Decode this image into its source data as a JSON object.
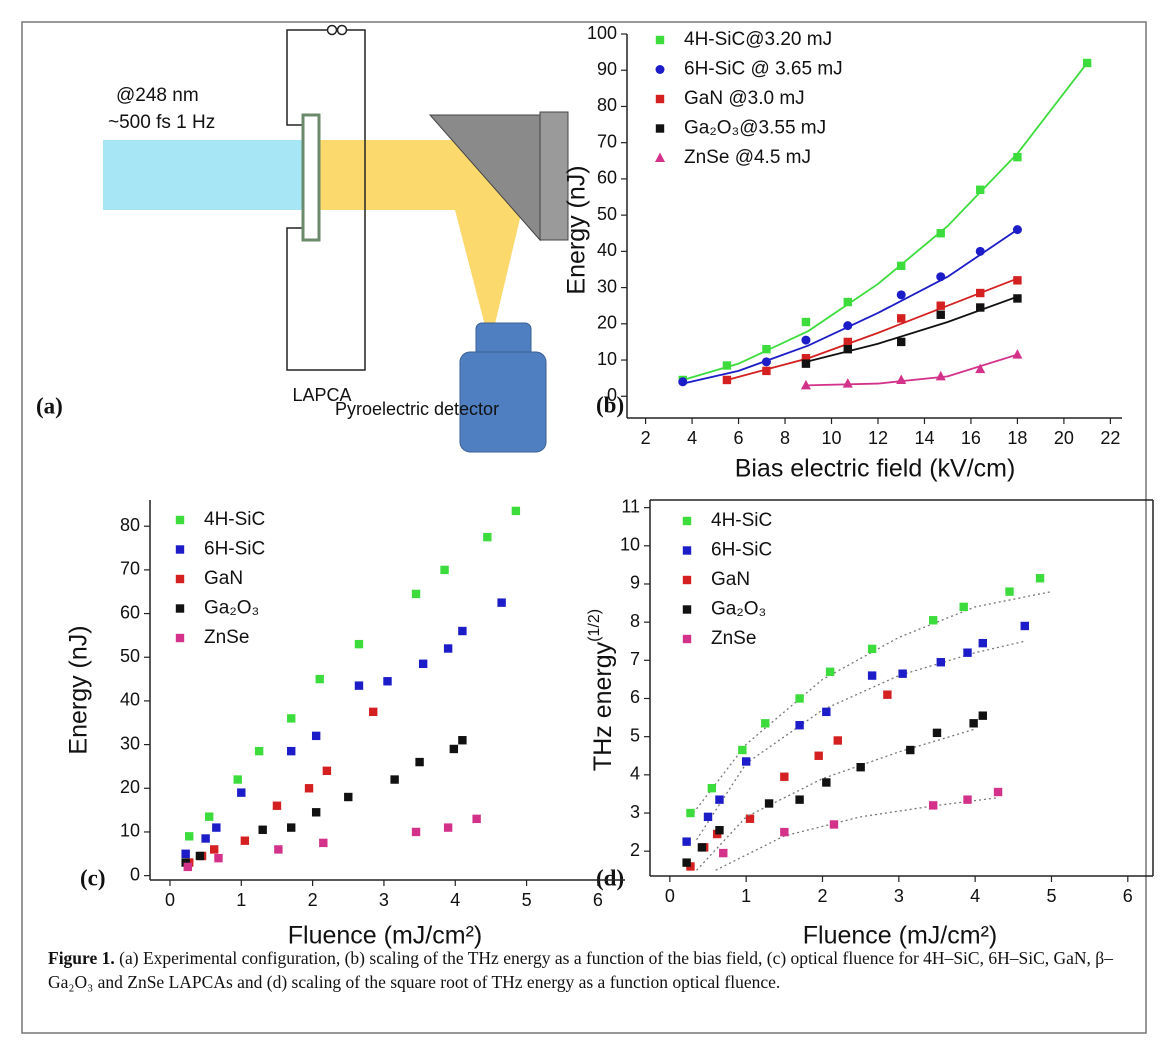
{
  "diagram": {
    "panel_label": "(a)",
    "wavelength": "@248 nm",
    "pulse": "~500 fs 1 Hz",
    "antenna": "LAPCA",
    "detector": "Pyroelectric detector"
  },
  "caption": {
    "label": "Figure 1.",
    "text": "(a) Experimental configuration, (b) scaling of the THz energy as a function of the bias field, (c) optical fluence for 4H–SiC, 6H–SiC, GaN, β–Ga₂O₃ and ZnSe LAPCAs and (d) scaling of the square root of THz energy as a function optical fluence."
  },
  "chart_data": [
    {
      "type": "scatter",
      "panel_label": "(b)",
      "x_label": "Bias electric field (kV/cm)",
      "y_label": "Energy (nJ)",
      "xlim": [
        1.2,
        22.5
      ],
      "ylim": [
        -6,
        100
      ],
      "xticks": [
        2,
        4,
        6,
        8,
        10,
        12,
        14,
        16,
        18,
        20,
        22
      ],
      "yticks": [
        0,
        10,
        20,
        30,
        40,
        50,
        60,
        70,
        80,
        90,
        100
      ],
      "legend": "top-left",
      "fit_dashed": false,
      "series": [
        {
          "name": "4H-SiC@3.20 mJ",
          "color": "#3ddc3d",
          "marker": "square",
          "x": [
            3.6,
            5.5,
            7.2,
            8.9,
            10.7,
            13,
            14.7,
            16.4,
            18,
            21
          ],
          "values": [
            4.5,
            8.5,
            13,
            20.5,
            26,
            36,
            45,
            57,
            66,
            92
          ],
          "fit": {
            "x": [
              3.6,
              6,
              9,
              12,
              15,
              18,
              21
            ],
            "values": [
              4.5,
              9,
              18,
              31,
              47,
              67,
              92
            ]
          }
        },
        {
          "name": "6H-SiC @ 3.65 mJ",
          "color": "#1c1cc8",
          "marker": "circle",
          "x": [
            3.6,
            7.2,
            8.9,
            10.7,
            13,
            14.7,
            16.4,
            18
          ],
          "values": [
            4,
            9.5,
            15.5,
            19.5,
            28,
            33,
            40,
            46
          ],
          "fit": {
            "x": [
              3.6,
              6,
              9,
              12,
              15,
              18
            ],
            "values": [
              3.5,
              7,
              14,
              23,
              33,
              46
            ]
          }
        },
        {
          "name": "GaN @3.0 mJ",
          "color": "#d42020",
          "marker": "square",
          "x": [
            5.5,
            7.2,
            8.9,
            10.7,
            13,
            14.7,
            16.4,
            18
          ],
          "values": [
            4.5,
            7,
            10.5,
            15,
            21.5,
            25,
            28.5,
            32
          ],
          "fit": {
            "x": [
              5.5,
              9,
              12,
              15,
              18
            ],
            "values": [
              4.5,
              10.5,
              17.5,
              25,
              32.5
            ]
          }
        },
        {
          "name": "Ga₂O₃@3.55 mJ",
          "color": "#111111",
          "marker": "square",
          "x": [
            8.9,
            10.7,
            13,
            14.7,
            16.4,
            18
          ],
          "values": [
            9,
            13,
            15,
            22.5,
            24.5,
            27
          ],
          "fit": {
            "x": [
              8.9,
              12,
              15,
              18
            ],
            "values": [
              9.5,
              14.5,
              20.5,
              27.5
            ]
          }
        },
        {
          "name": "ZnSe @4.5 mJ",
          "color": "#d4328a",
          "marker": "triangle",
          "x": [
            8.9,
            10.7,
            13,
            14.7,
            16.4,
            18
          ],
          "values": [
            3,
            3.5,
            4.5,
            5.5,
            7.5,
            11.5
          ],
          "fit": {
            "x": [
              8.9,
              12,
              15,
              18
            ],
            "values": [
              3,
              3.5,
              5.5,
              11.5
            ]
          }
        }
      ]
    },
    {
      "type": "scatter",
      "panel_label": "(c)",
      "x_label": "Fluence (mJ/cm²)",
      "y_label": "Energy (nJ)",
      "xlim": [
        -0.28,
        6.38
      ],
      "ylim": [
        -1,
        86
      ],
      "xticks": [
        0,
        1,
        2,
        3,
        4,
        5,
        6
      ],
      "yticks": [
        0,
        10,
        20,
        30,
        40,
        50,
        60,
        70,
        80
      ],
      "legend": "top-left",
      "series": [
        {
          "name": "4H-SiC",
          "color": "#3ddc3d",
          "marker": "square",
          "x": [
            0.27,
            0.55,
            0.95,
            1.25,
            1.7,
            2.1,
            2.65,
            3.45,
            3.85,
            4.45,
            4.85
          ],
          "values": [
            9,
            13.5,
            22,
            28.5,
            36,
            45,
            53,
            64.5,
            70,
            77.5,
            83.5
          ]
        },
        {
          "name": "6H-SiC",
          "color": "#1c1cc8",
          "marker": "square",
          "x": [
            0.22,
            0.5,
            0.65,
            1.0,
            1.7,
            2.05,
            2.65,
            3.05,
            3.55,
            3.9,
            4.1,
            4.65
          ],
          "values": [
            5,
            8.5,
            11,
            19,
            28.5,
            32,
            43.5,
            44.5,
            48.5,
            52,
            56,
            62.5
          ]
        },
        {
          "name": "GaN",
          "color": "#d42020",
          "marker": "square",
          "x": [
            0.27,
            0.45,
            0.62,
            1.05,
            1.5,
            1.95,
            2.2,
            2.85
          ],
          "values": [
            3,
            4.5,
            6,
            8,
            16,
            20,
            24,
            37.5
          ]
        },
        {
          "name": "Ga₂O₃",
          "color": "#111111",
          "marker": "square",
          "x": [
            0.22,
            0.42,
            1.3,
            1.7,
            2.05,
            2.5,
            3.15,
            3.5,
            3.98,
            4.1
          ],
          "values": [
            3,
            4.5,
            10.5,
            11,
            14.5,
            18,
            22,
            26,
            29,
            31
          ]
        },
        {
          "name": "ZnSe",
          "color": "#d4328a",
          "marker": "square",
          "x": [
            0.25,
            0.68,
            1.52,
            2.15,
            3.45,
            3.9,
            4.3
          ],
          "values": [
            2,
            4,
            6,
            7.5,
            10,
            11,
            13
          ]
        }
      ]
    },
    {
      "type": "scatter",
      "panel_label": "(d)",
      "x_label": "Fluence (mJ/cm²)",
      "y_label": "THz energy",
      "y_label_sup": "(1/2)",
      "xlim": [
        -0.26,
        6.33
      ],
      "ylim": [
        1.35,
        11.2
      ],
      "xticks": [
        0,
        1,
        2,
        3,
        4,
        5,
        6
      ],
      "yticks": [
        2,
        3,
        4,
        5,
        6,
        7,
        8,
        9,
        10,
        11
      ],
      "legend": "top-left",
      "frame": true,
      "fit_dashed": true,
      "series": [
        {
          "name": "4H-SiC",
          "color": "#3ddc3d",
          "marker": "square",
          "x": [
            0.27,
            0.55,
            0.95,
            1.25,
            1.7,
            2.1,
            2.65,
            3.45,
            3.85,
            4.45,
            4.85
          ],
          "values": [
            3,
            3.65,
            4.65,
            5.35,
            6,
            6.7,
            7.3,
            8.05,
            8.4,
            8.8,
            9.15
          ],
          "fit": {
            "x": [
              0.27,
              1,
              2,
              3,
              4,
              5
            ],
            "values": [
              2.9,
              4.8,
              6.5,
              7.6,
              8.4,
              8.8
            ]
          }
        },
        {
          "name": "6H-SiC",
          "color": "#1c1cc8",
          "marker": "square",
          "x": [
            0.22,
            0.5,
            0.65,
            1.0,
            1.7,
            2.05,
            2.65,
            3.05,
            3.55,
            3.9,
            4.1,
            4.65
          ],
          "values": [
            2.25,
            2.9,
            3.35,
            4.35,
            5.3,
            5.65,
            6.6,
            6.65,
            6.95,
            7.2,
            7.45,
            7.9
          ],
          "fit": {
            "x": [
              0.35,
              1,
              2,
              3,
              4,
              4.65
            ],
            "values": [
              2.3,
              4.3,
              5.7,
              6.6,
              7.2,
              7.5
            ]
          }
        },
        {
          "name": "GaN",
          "color": "#d42020",
          "marker": "square",
          "x": [
            0.27,
            0.45,
            0.62,
            1.05,
            1.5,
            1.95,
            2.2,
            2.85
          ],
          "values": [
            1.6,
            2.1,
            2.45,
            2.85,
            3.95,
            4.5,
            4.9,
            6.1
          ]
        },
        {
          "name": "Ga₂O₃",
          "color": "#111111",
          "marker": "square",
          "x": [
            0.22,
            0.42,
            0.65,
            1.3,
            1.7,
            2.05,
            2.5,
            3.15,
            3.5,
            3.98,
            4.1
          ],
          "values": [
            1.7,
            2.1,
            2.55,
            3.25,
            3.35,
            3.8,
            4.2,
            4.65,
            5.1,
            5.35,
            5.55
          ],
          "fit": {
            "x": [
              0.35,
              1,
              2,
              3,
              4
            ],
            "values": [
              1.5,
              2.9,
              3.9,
              4.6,
              5.2
            ]
          }
        },
        {
          "name": "ZnSe",
          "color": "#d4328a",
          "marker": "square",
          "x": [
            0.7,
            1.5,
            2.15,
            3.45,
            3.9,
            4.3
          ],
          "values": [
            1.95,
            2.5,
            2.7,
            3.2,
            3.35,
            3.55
          ],
          "fit": {
            "x": [
              0.6,
              1.5,
              2.5,
              3.5,
              4.3
            ],
            "values": [
              1.5,
              2.4,
              2.9,
              3.2,
              3.4
            ]
          }
        }
      ]
    }
  ]
}
